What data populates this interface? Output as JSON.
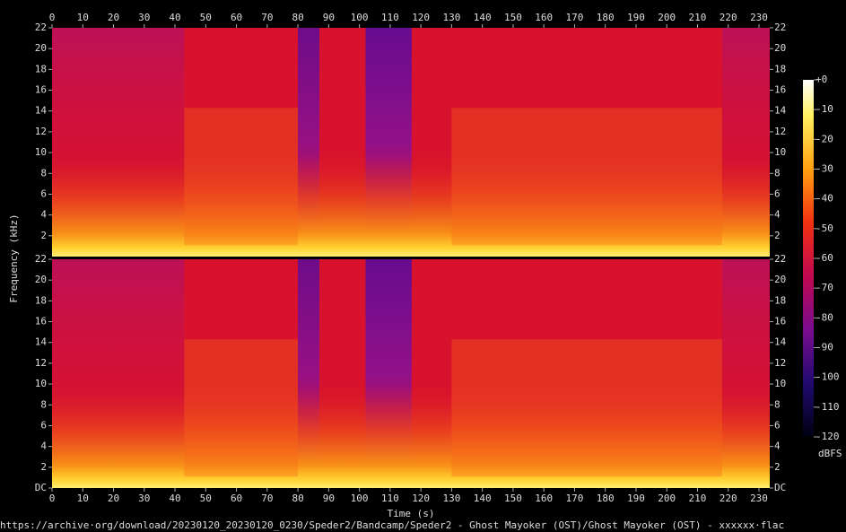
{
  "chart_data": [
    {
      "type": "spectrogram",
      "xlim": [
        0,
        233.5
      ],
      "xticks": [
        0,
        10,
        20,
        30,
        40,
        50,
        60,
        70,
        80,
        90,
        100,
        110,
        120,
        130,
        140,
        150,
        160,
        170,
        180,
        190,
        200,
        210,
        220,
        230
      ],
      "ylim": [
        0,
        22
      ],
      "yticks": [
        2,
        4,
        6,
        8,
        10,
        12,
        14,
        16,
        18,
        20,
        22
      ]
    },
    {
      "type": "spectrogram",
      "xlabel": "Time (s)",
      "xlim": [
        0,
        233.5
      ],
      "xticks": [
        0,
        10,
        20,
        30,
        40,
        50,
        60,
        70,
        80,
        90,
        100,
        110,
        120,
        130,
        140,
        150,
        160,
        170,
        180,
        190,
        200,
        210,
        220,
        230
      ],
      "ylim": [
        0,
        22
      ],
      "yticks": [
        {
          "value": 0,
          "label": "DC"
        },
        2,
        4,
        6,
        8,
        10,
        12,
        14,
        16,
        18,
        20,
        22
      ]
    }
  ],
  "ylabel": "Frequency (kHz)",
  "colorbar": {
    "label": "dBFS",
    "lim": [
      -120,
      0
    ],
    "ticks": [
      {
        "value": 0,
        "label": "+0"
      },
      -10,
      -20,
      -30,
      -40,
      -50,
      -60,
      -70,
      -80,
      -90,
      -100,
      -110,
      -120
    ]
  },
  "source": "https://archive·org/download/20230120_20230120_0230/Speder2/Bandcamp/Speder2 - Ghost Mayoker (OST)/Ghost Mayoker (OST) - xxxxxx·flac"
}
